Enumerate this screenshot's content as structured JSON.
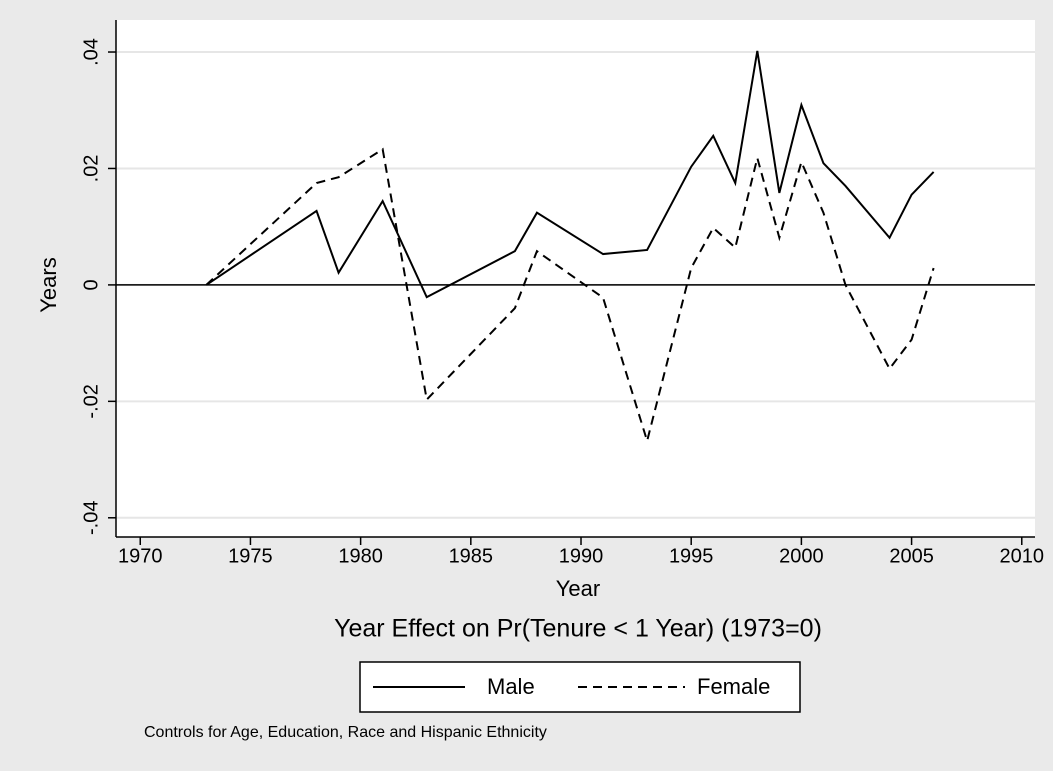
{
  "chart_data": {
    "type": "line",
    "ylabel": "Years",
    "xlabel": "Year",
    "title": "Year Effect on Pr(Tenure < 1 Year) (1973=0)",
    "note": "Controls for Age, Education, Race and Hispanic Ethnicity",
    "x": [
      1973,
      1978,
      1979,
      1981,
      1983,
      1987,
      1988,
      1991,
      1993,
      1995,
      1996,
      1997,
      1998,
      1999,
      2000,
      2001,
      2002,
      2004,
      2005,
      2006
    ],
    "series": [
      {
        "name": "Male",
        "color": "#000000",
        "dash": "solid",
        "values": [
          0,
          0.0127,
          0.0021,
          0.0144,
          -0.0021,
          0.0058,
          0.0124,
          0.0053,
          0.006,
          0.0203,
          0.0256,
          0.0175,
          0.0402,
          0.0158,
          0.0309,
          0.0209,
          0.017,
          0.0081,
          0.0155,
          0.0194
        ]
      },
      {
        "name": "Female",
        "color": "#000000",
        "dash": "dashed",
        "values": [
          0,
          0.0175,
          0.0185,
          0.0233,
          -0.0197,
          -0.004,
          0.0058,
          -0.0022,
          -0.0268,
          0.0029,
          0.0098,
          0.0064,
          0.0218,
          0.0081,
          0.0211,
          0.0124,
          0.0,
          -0.0144,
          -0.0094,
          0.0029
        ]
      }
    ],
    "xlim": [
      1968.9,
      2010.6
    ],
    "xticks": [
      1970,
      1975,
      1980,
      1985,
      1990,
      1995,
      2000,
      2005,
      2010
    ],
    "ylim": [
      -0.0433,
      0.0455
    ],
    "yticks": [
      {
        "value": -0.04,
        "label": "-.04"
      },
      {
        "value": -0.02,
        "label": "-.02"
      },
      0,
      {
        "value": 0.02,
        "label": ".02"
      },
      {
        "value": 0.04,
        "label": ".04"
      }
    ],
    "yline": 0,
    "grid": true,
    "legend": "bottom"
  }
}
